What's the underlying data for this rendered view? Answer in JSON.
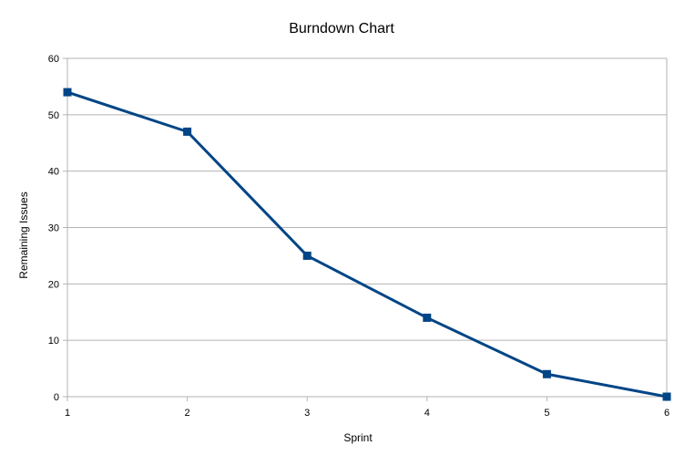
{
  "chart_data": {
    "type": "line",
    "title": "Burndown Chart",
    "xlabel": "Sprint",
    "ylabel": "Remaining Issues",
    "x": [
      1,
      2,
      3,
      4,
      5,
      6
    ],
    "xlim": [
      1,
      6
    ],
    "ylim": [
      0,
      60
    ],
    "yticks": [
      0,
      10,
      20,
      30,
      40,
      50,
      60
    ],
    "xticks": [
      1,
      2,
      3,
      4,
      5,
      6
    ],
    "grid": true,
    "legend": "none",
    "series": [
      {
        "values": [
          54,
          47,
          25,
          14,
          4,
          0
        ],
        "color": "#004586",
        "marker": "square"
      }
    ],
    "colors": {
      "line": "#004586",
      "grid": "#b3b3b3",
      "axis": "#b3b3b3"
    }
  }
}
